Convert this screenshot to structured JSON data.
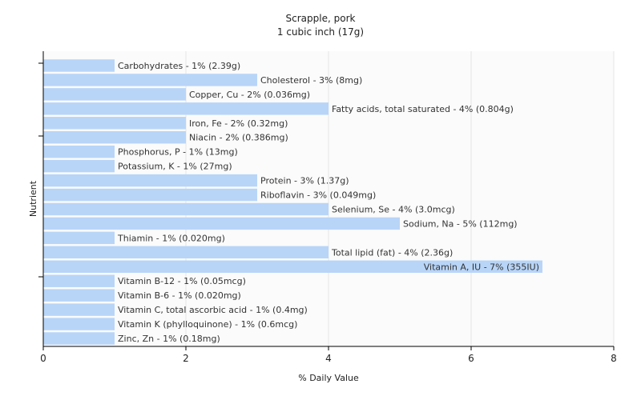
{
  "chart_data": {
    "type": "bar",
    "orientation": "horizontal",
    "title": "Scrapple, pork",
    "subtitle": "1 cubic inch (17g)",
    "xlabel": "% Daily Value",
    "ylabel": "Nutrient",
    "xlim": [
      0,
      8
    ],
    "xticks": [
      "0",
      "2",
      "4",
      "6",
      "8"
    ],
    "grid": true,
    "bar_color": "#b8d5f8",
    "grid_color": "#e6e6e6",
    "plot_background": "#fbfbfb",
    "highlight_text_color": "#333333",
    "bars": [
      {
        "label": "Carbohydrates - 1% (2.39g)",
        "value": 1
      },
      {
        "label": "Cholesterol - 3% (8mg)",
        "value": 3
      },
      {
        "label": "Copper, Cu - 2% (0.036mg)",
        "value": 2
      },
      {
        "label": "Fatty acids, total saturated - 4% (0.804g)",
        "value": 4
      },
      {
        "label": "Iron, Fe - 2% (0.32mg)",
        "value": 2
      },
      {
        "label": "Niacin - 2% (0.386mg)",
        "value": 2
      },
      {
        "label": "Phosphorus, P - 1% (13mg)",
        "value": 1
      },
      {
        "label": "Potassium, K - 1% (27mg)",
        "value": 1
      },
      {
        "label": "Protein - 3% (1.37g)",
        "value": 3
      },
      {
        "label": "Riboflavin - 3% (0.049mg)",
        "value": 3
      },
      {
        "label": "Selenium, Se - 4% (3.0mcg)",
        "value": 4
      },
      {
        "label": "Sodium, Na - 5% (112mg)",
        "value": 5
      },
      {
        "label": "Thiamin - 1% (0.020mg)",
        "value": 1
      },
      {
        "label": "Total lipid (fat) - 4% (2.36g)",
        "value": 4
      },
      {
        "label": "Vitamin A, IU - 7% (355IU)",
        "value": 7
      },
      {
        "label": "Vitamin B-12 - 1% (0.05mcg)",
        "value": 1
      },
      {
        "label": "Vitamin B-6 - 1% (0.020mg)",
        "value": 1
      },
      {
        "label": "Vitamin C, total ascorbic acid - 1% (0.4mg)",
        "value": 1
      },
      {
        "label": "Vitamin K (phylloquinone) - 1% (0.6mcg)",
        "value": 1
      },
      {
        "label": "Zinc, Zn - 1% (0.18mg)",
        "value": 1
      }
    ]
  }
}
